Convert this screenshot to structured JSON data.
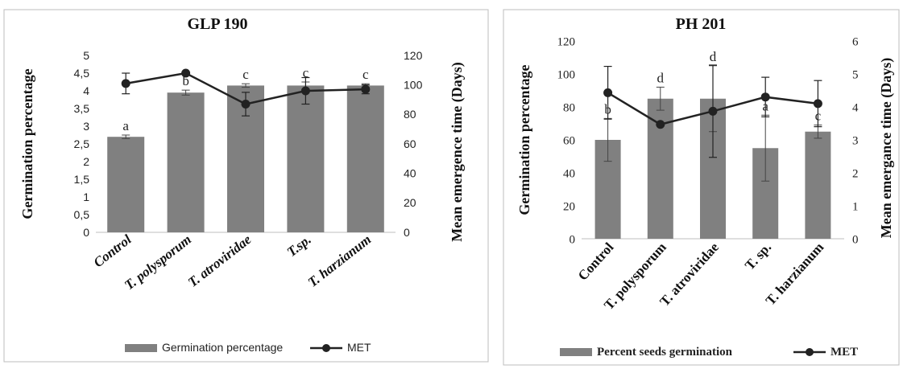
{
  "chart_data": [
    {
      "type": "bar",
      "title": "GLP 190",
      "ylabel": "Germination percentage",
      "y2label": "Mean  emergence time (Days)",
      "categories": [
        "Control",
        "T. polysporum",
        "T. atroviridae",
        "T.sp.",
        "T. harzianum"
      ],
      "ylim": [
        0,
        5
      ],
      "y2lim": [
        0,
        120
      ],
      "yticks": [
        "0",
        "0,5",
        "1",
        "1,5",
        "2",
        "2,5",
        "3",
        "3,5",
        "4",
        "4,5",
        "5"
      ],
      "y2ticks": [
        "0",
        "20",
        "40",
        "60",
        "80",
        "100",
        "120"
      ],
      "grid": false,
      "legend": "bottom",
      "colors": {
        "bar": "#808080",
        "line": "#222222"
      },
      "series": [
        {
          "name": "Germination percentage",
          "type": "bar",
          "axis": "left",
          "values": [
            2.7,
            3.95,
            4.15,
            4.15,
            4.15
          ],
          "error": [
            0.05,
            0.07,
            0.05,
            0.1,
            0.05
          ],
          "labels": [
            "a",
            "b",
            "c",
            "c",
            "c"
          ]
        },
        {
          "name": "MET",
          "type": "line",
          "axis": "right",
          "values": [
            101,
            108,
            87,
            96,
            97
          ],
          "error": [
            7,
            0,
            8,
            9,
            3
          ]
        }
      ]
    },
    {
      "type": "bar",
      "title": "PH 201",
      "ylabel": "Germination percentage",
      "y2label": "Mean emergance time (Days)",
      "categories": [
        "Control",
        "T. polysporum",
        "T. atroviridae",
        "T. sp.",
        "T. harzianum"
      ],
      "ylim": [
        0,
        120
      ],
      "y2lim": [
        0,
        6
      ],
      "yticks": [
        "0",
        "20",
        "40",
        "60",
        "80",
        "100",
        "120"
      ],
      "y2ticks": [
        "0",
        "1",
        "2",
        "3",
        "4",
        "5",
        "6"
      ],
      "grid": false,
      "legend": "bottom",
      "colors": {
        "bar": "#808080",
        "line": "#222222"
      },
      "series": [
        {
          "name": "Percent seeds germination",
          "type": "bar",
          "axis": "left",
          "values": [
            60,
            85,
            85,
            55,
            65
          ],
          "error": [
            13,
            7,
            20,
            20,
            4
          ],
          "labels": [
            "b",
            "d",
            "d",
            "a",
            "c"
          ]
        },
        {
          "name": "MET",
          "type": "line",
          "axis": "right",
          "values": [
            4.43,
            3.47,
            3.87,
            4.3,
            4.1
          ],
          "error": [
            0.8,
            0,
            1.4,
            0.6,
            0.7
          ]
        }
      ]
    }
  ]
}
